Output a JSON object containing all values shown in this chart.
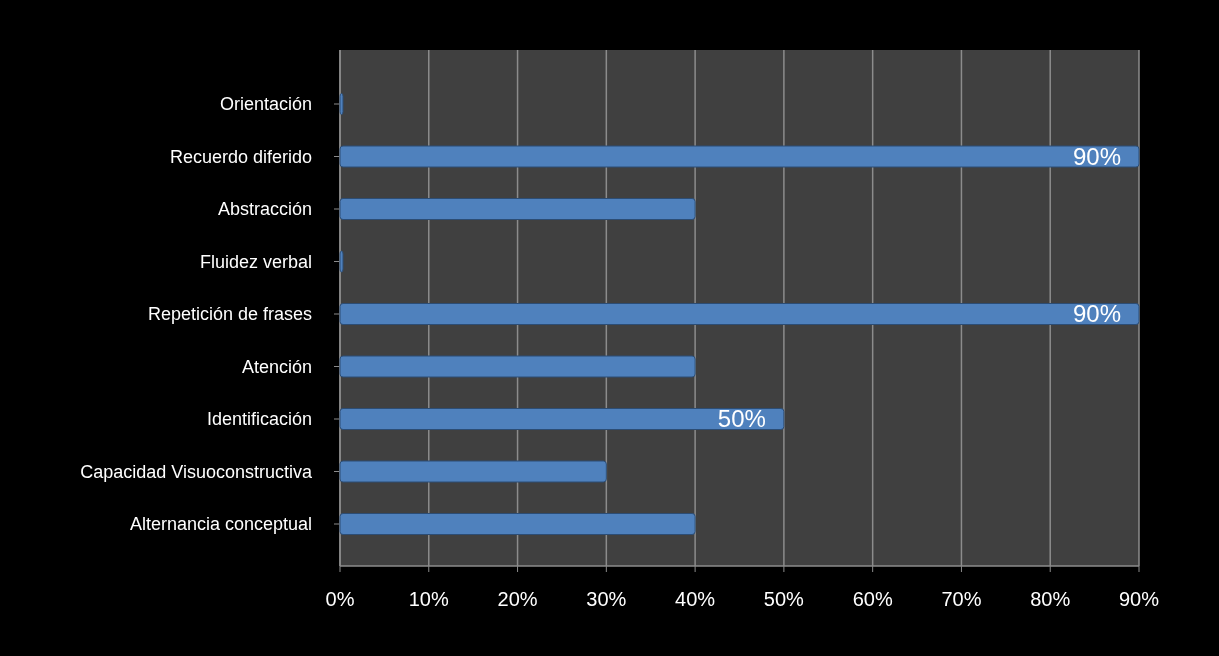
{
  "chart_data": {
    "type": "bar",
    "orientation": "horizontal",
    "categories": [
      "Orientación",
      "Recuerdo diferido",
      "Abstracción",
      "Fluidez verbal",
      "Repetición de frases",
      "Atención",
      "Identificación",
      "Capacidad Visuoconstructiva",
      "Alternancia conceptual"
    ],
    "values": [
      0,
      90,
      40,
      0,
      90,
      40,
      50,
      30,
      40
    ],
    "value_labels": [
      null,
      "90%",
      null,
      null,
      "90%",
      null,
      "50%",
      null,
      null
    ],
    "color": "#4f81bd",
    "xlim": [
      0,
      90
    ],
    "xticks": [
      {
        "value": 0,
        "label": "0%"
      },
      {
        "value": 10,
        "label": "10%"
      },
      {
        "value": 20,
        "label": "20%"
      },
      {
        "value": 30,
        "label": "30%"
      },
      {
        "value": 40,
        "label": "40%"
      },
      {
        "value": 50,
        "label": "50%"
      },
      {
        "value": 60,
        "label": "60%"
      },
      {
        "value": 70,
        "label": "70%"
      },
      {
        "value": 80,
        "label": "80%"
      },
      {
        "value": 90,
        "label": "90%"
      }
    ],
    "grid": "x"
  }
}
